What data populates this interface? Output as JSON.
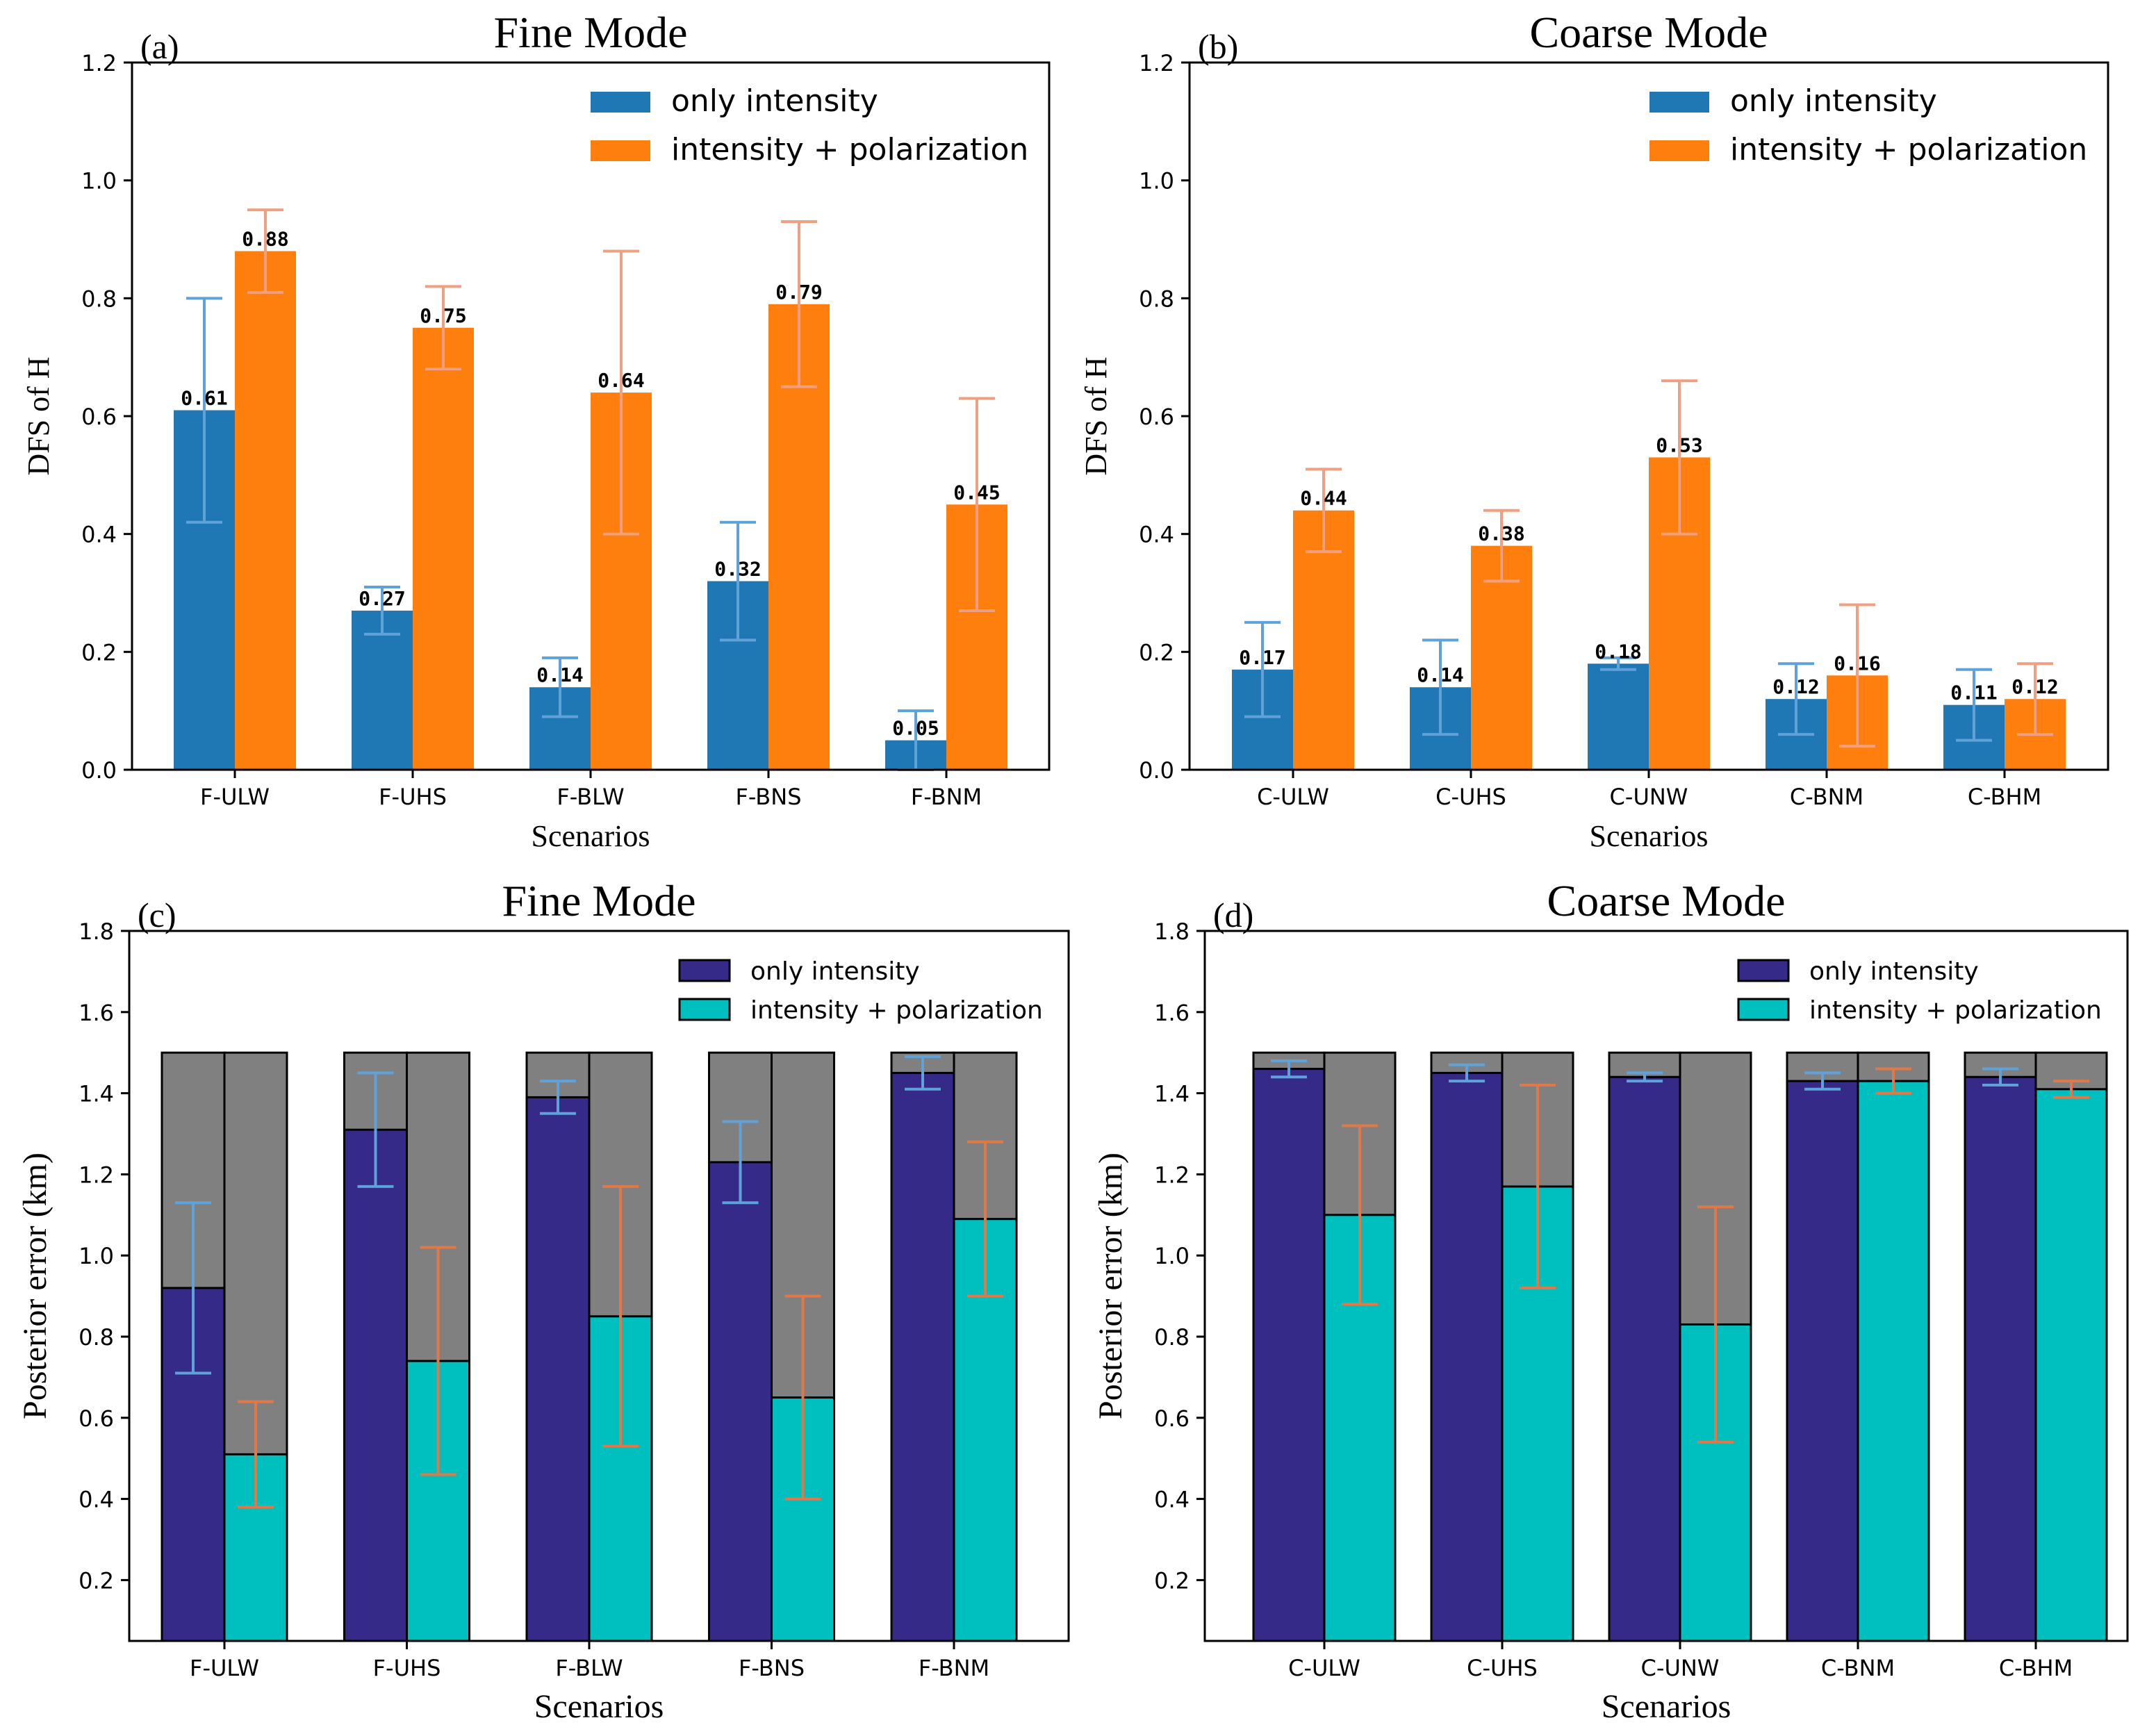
{
  "chart_data": [
    {
      "type": "bar",
      "panel": "(a)",
      "title": "Fine Mode",
      "xlabel": "Scenarios",
      "ylabel": "DFS of H",
      "ylim": [
        0,
        1.2
      ],
      "yticks": [
        "0.0",
        "0.2",
        "0.4",
        "0.6",
        "0.8",
        "1.0",
        "1.2"
      ],
      "categories": [
        "F-ULW",
        "F-UHS",
        "F-BLW",
        "F-BNS",
        "F-BNM"
      ],
      "legend_position": "top-right",
      "series": [
        {
          "name": "only intensity",
          "color": "#1f77b4",
          "errcolor": "#5fa2da",
          "values": [
            0.61,
            0.27,
            0.14,
            0.32,
            0.05
          ],
          "labels": [
            "0.61",
            "0.27",
            "0.14",
            "0.32",
            "0.05"
          ],
          "err_low": [
            0.42,
            0.23,
            0.09,
            0.22,
            0.0
          ],
          "err_high": [
            0.8,
            0.31,
            0.19,
            0.42,
            0.1
          ]
        },
        {
          "name": "intensity + polarization",
          "color": "#ff7f0e",
          "errcolor": "#f0a080",
          "values": [
            0.88,
            0.75,
            0.64,
            0.79,
            0.45
          ],
          "labels": [
            "0.88",
            "0.75",
            "0.64",
            "0.79",
            "0.45"
          ],
          "err_low": [
            0.81,
            0.68,
            0.4,
            0.65,
            0.27
          ],
          "err_high": [
            0.95,
            0.82,
            0.88,
            0.93,
            0.63
          ]
        }
      ]
    },
    {
      "type": "bar",
      "panel": "(b)",
      "title": "Coarse Mode",
      "xlabel": "Scenarios",
      "ylabel": "DFS of H",
      "ylim": [
        0,
        1.2
      ],
      "yticks": [
        "0.0",
        "0.2",
        "0.4",
        "0.6",
        "0.8",
        "1.0",
        "1.2"
      ],
      "categories": [
        "C-ULW",
        "C-UHS",
        "C-UNW",
        "C-BNM",
        "C-BHM"
      ],
      "legend_position": "top-right",
      "series": [
        {
          "name": "only intensity",
          "color": "#1f77b4",
          "errcolor": "#5fa2da",
          "values": [
            0.17,
            0.14,
            0.18,
            0.12,
            0.11
          ],
          "labels": [
            "0.17",
            "0.14",
            "0.18",
            "0.12",
            "0.11"
          ],
          "err_low": [
            0.09,
            0.06,
            0.17,
            0.06,
            0.05
          ],
          "err_high": [
            0.25,
            0.22,
            0.19,
            0.18,
            0.17
          ]
        },
        {
          "name": "intensity + polarization",
          "color": "#ff7f0e",
          "errcolor": "#f0a080",
          "values": [
            0.44,
            0.38,
            0.53,
            0.16,
            0.12
          ],
          "labels": [
            "0.44",
            "0.38",
            "0.53",
            "0.16",
            "0.12"
          ],
          "err_low": [
            0.37,
            0.32,
            0.4,
            0.04,
            0.06
          ],
          "err_high": [
            0.51,
            0.44,
            0.66,
            0.28,
            0.18
          ]
        }
      ]
    },
    {
      "type": "bar",
      "stacked_reference": 1.5,
      "reference_color": "#808080",
      "panel": "(c)",
      "title": "Fine Mode",
      "xlabel": "Scenarios",
      "ylabel": "Posterior error (km)",
      "ylim": [
        0.05,
        1.8
      ],
      "yticks": [
        "0.2",
        "0.4",
        "0.6",
        "0.8",
        "1.0",
        "1.2",
        "1.4",
        "1.6",
        "1.8"
      ],
      "categories": [
        "F-ULW",
        "F-UHS",
        "F-BLW",
        "F-BNS",
        "F-BNM"
      ],
      "legend_position": "top-right",
      "series": [
        {
          "name": "only intensity",
          "color": "#352a87",
          "errcolor": "#5fa2da",
          "values": [
            0.92,
            1.31,
            1.39,
            1.23,
            1.45
          ],
          "err_low": [
            0.71,
            1.17,
            1.35,
            1.13,
            1.41
          ],
          "err_high": [
            1.13,
            1.45,
            1.43,
            1.33,
            1.49
          ]
        },
        {
          "name": "intensity + polarization",
          "color": "#00bfbf",
          "errcolor": "#e07848",
          "values": [
            0.51,
            0.74,
            0.85,
            0.65,
            1.09
          ],
          "err_low": [
            0.38,
            0.46,
            0.53,
            0.4,
            0.9
          ],
          "err_high": [
            0.64,
            1.02,
            1.17,
            0.9,
            1.28
          ]
        }
      ]
    },
    {
      "type": "bar",
      "stacked_reference": 1.5,
      "reference_color": "#808080",
      "panel": "(d)",
      "title": "Coarse Mode",
      "xlabel": "Scenarios",
      "ylabel": "Posterior error (km)",
      "ylim": [
        0.05,
        1.8
      ],
      "yticks": [
        "0.2",
        "0.4",
        "0.6",
        "0.8",
        "1.0",
        "1.2",
        "1.4",
        "1.6",
        "1.8"
      ],
      "categories": [
        "C-ULW",
        "C-UHS",
        "C-UNW",
        "C-BNM",
        "C-BHM"
      ],
      "legend_position": "top-right",
      "series": [
        {
          "name": "only intensity",
          "color": "#352a87",
          "errcolor": "#5fa2da",
          "values": [
            1.46,
            1.45,
            1.44,
            1.43,
            1.44
          ],
          "err_low": [
            1.44,
            1.43,
            1.43,
            1.41,
            1.42
          ],
          "err_high": [
            1.48,
            1.47,
            1.45,
            1.45,
            1.46
          ]
        },
        {
          "name": "intensity + polarization",
          "color": "#00bfbf",
          "errcolor": "#e07848",
          "values": [
            1.1,
            1.17,
            0.83,
            1.43,
            1.41
          ],
          "err_low": [
            0.88,
            0.92,
            0.54,
            1.4,
            1.39
          ],
          "err_high": [
            1.32,
            1.42,
            1.12,
            1.46,
            1.43
          ]
        }
      ]
    }
  ]
}
